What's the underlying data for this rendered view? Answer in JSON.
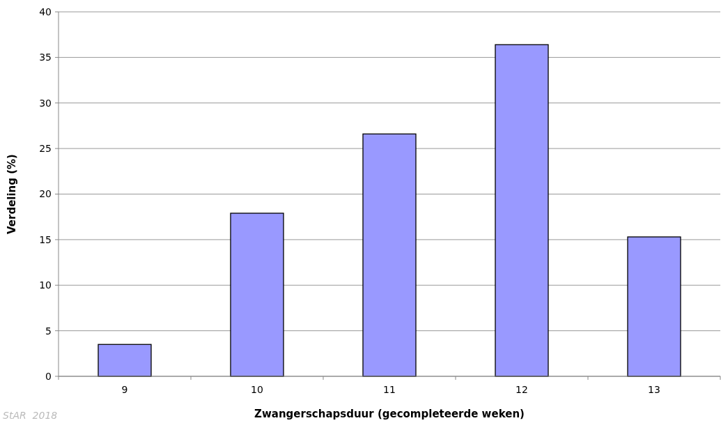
{
  "chart_data": {
    "type": "bar",
    "xlabel": "Zwangerschapsduur (gecompleteerde weken)",
    "ylabel": "Verdeling (%)",
    "categories": [
      "9",
      "10",
      "11",
      "12",
      "13"
    ],
    "values": [
      3.5,
      17.9,
      26.6,
      36.4,
      15.3
    ],
    "color": "#9999ff",
    "ylim": [
      0,
      40
    ],
    "yticks": [
      0,
      5,
      10,
      15,
      20,
      25,
      30,
      35,
      40
    ],
    "grid": "y",
    "annotations": [
      "StAR  2018"
    ]
  }
}
